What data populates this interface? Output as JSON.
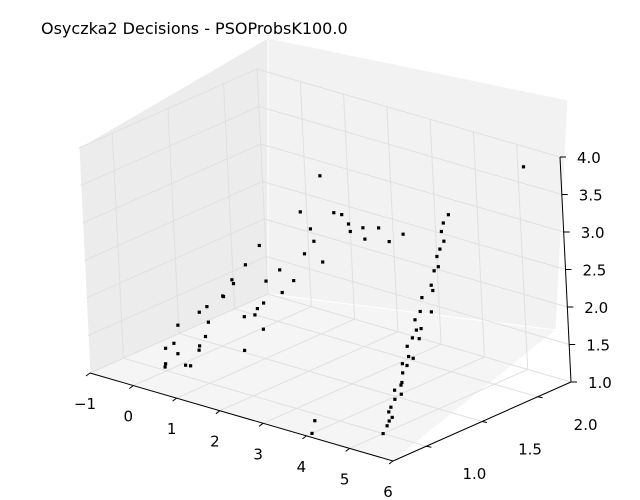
{
  "chart_data": {
    "type": "scatter",
    "title": "Osyczka2 Decisions - PSOProbsK100.0",
    "xlabel": "",
    "ylabel": "",
    "zlabel": "",
    "xlim": [
      -1,
      6
    ],
    "ylim": [
      0.7,
      2.3
    ],
    "zlim": [
      1,
      4
    ],
    "x_ticks": [
      -1,
      0,
      1,
      2,
      3,
      4,
      5,
      6
    ],
    "x_tick_labels": [
      "−1",
      "0",
      "1",
      "2",
      "3",
      "4",
      "5",
      "6"
    ],
    "y_ticks": [
      1.0,
      1.5,
      2.0
    ],
    "y_tick_labels": [
      "1.0",
      "1.5",
      "2.0"
    ],
    "z_ticks": [
      1.0,
      1.5,
      2.0,
      2.5,
      3.0,
      3.5,
      4.0
    ],
    "z_tick_labels": [
      "1.0",
      "1.5",
      "2.0",
      "2.5",
      "3.0",
      "3.5",
      "4.0"
    ],
    "grid": true,
    "colors": {
      "points": "#000000",
      "pane_back": "#ececec",
      "pane_side": "#f2f2f2",
      "pane_floor": "#f5f5f5"
    },
    "series": [
      {
        "points": [
          [
            0.15,
            1.05,
            1.22
          ],
          [
            0.2,
            1.0,
            1.4
          ],
          [
            0.1,
            0.95,
            1.1
          ],
          [
            0.3,
            1.1,
            1.05
          ],
          [
            0.4,
            1.15,
            1.3
          ],
          [
            0.05,
            1.1,
            1.55
          ],
          [
            0.5,
            1.2,
            1.6
          ],
          [
            0.35,
            1.25,
            1.75
          ],
          [
            0.6,
            1.3,
            1.9
          ],
          [
            0.7,
            1.35,
            2.1
          ],
          [
            0.9,
            1.4,
            2.3
          ],
          [
            1.1,
            1.5,
            2.05
          ],
          [
            1.3,
            1.55,
            2.2
          ],
          [
            1.2,
            1.6,
            1.85
          ],
          [
            1.0,
            1.45,
            1.7
          ],
          [
            0.8,
            1.5,
            1.55
          ],
          [
            1.5,
            1.7,
            2.35
          ],
          [
            1.6,
            1.75,
            2.5
          ],
          [
            1.4,
            1.8,
            2.6
          ],
          [
            1.7,
            1.9,
            2.8
          ],
          [
            1.9,
            1.95,
            2.65
          ],
          [
            1.8,
            2.0,
            2.5
          ],
          [
            2.0,
            2.05,
            2.4
          ],
          [
            2.2,
            2.1,
            2.55
          ],
          [
            1.55,
            1.85,
            3.3
          ],
          [
            0.25,
            0.9,
            1.2
          ],
          [
            0.45,
            1.0,
            1.15
          ],
          [
            0.65,
            1.05,
            1.35
          ],
          [
            0.55,
            1.15,
            1.45
          ],
          [
            1.05,
            1.3,
            1.25
          ],
          [
            1.25,
            1.4,
            1.5
          ],
          [
            0.75,
            1.25,
            1.95
          ],
          [
            0.95,
            1.35,
            1.65
          ],
          [
            1.15,
            1.45,
            1.8
          ],
          [
            1.35,
            1.65,
            2.0
          ],
          [
            1.65,
            1.8,
            2.2
          ],
          [
            2.3,
            2.15,
            2.35
          ],
          [
            2.5,
            2.2,
            2.45
          ],
          [
            0.85,
            1.55,
            2.45
          ],
          [
            1.45,
            1.7,
            2.9
          ],
          [
            1.75,
            1.95,
            2.75
          ],
          [
            2.1,
            2.0,
            2.6
          ],
          [
            0.3,
            1.2,
            1.7
          ],
          [
            0.6,
            1.4,
            2.0
          ],
          [
            0.0,
            1.0,
            1.3
          ]
        ]
      },
      {
        "points": [
          [
            5.0,
            1.0,
            1.0
          ],
          [
            5.05,
            1.02,
            1.1
          ],
          [
            5.1,
            1.05,
            1.2
          ],
          [
            5.0,
            1.08,
            1.3
          ],
          [
            5.05,
            1.1,
            1.4
          ],
          [
            5.0,
            1.12,
            1.5
          ],
          [
            5.1,
            1.15,
            1.6
          ],
          [
            5.05,
            1.18,
            1.7
          ],
          [
            5.0,
            1.2,
            1.8
          ],
          [
            5.1,
            1.22,
            1.9
          ],
          [
            5.0,
            1.25,
            2.0
          ],
          [
            5.05,
            1.28,
            2.1
          ],
          [
            5.1,
            1.3,
            2.2
          ],
          [
            5.0,
            1.33,
            2.3
          ],
          [
            5.05,
            1.36,
            2.4
          ],
          [
            5.0,
            1.4,
            2.55
          ],
          [
            5.1,
            1.45,
            2.7
          ],
          [
            5.05,
            1.5,
            2.85
          ],
          [
            5.0,
            1.55,
            3.0
          ],
          [
            5.1,
            1.58,
            3.2
          ],
          [
            5.0,
            1.62,
            3.4
          ],
          [
            5.05,
            1.04,
            1.15
          ],
          [
            5.1,
            1.14,
            1.45
          ],
          [
            5.0,
            1.24,
            1.75
          ],
          [
            5.05,
            1.34,
            2.05
          ],
          [
            5.1,
            1.44,
            2.35
          ],
          [
            5.0,
            1.06,
            1.25
          ],
          [
            5.05,
            1.16,
            1.55
          ],
          [
            5.1,
            1.26,
            1.85
          ],
          [
            5.0,
            1.38,
            2.15
          ],
          [
            5.05,
            1.48,
            2.6
          ],
          [
            5.1,
            1.52,
            2.9
          ],
          [
            5.05,
            1.56,
            3.1
          ],
          [
            5.0,
            1.6,
            3.3
          ],
          [
            5.05,
            1.65,
            3.5
          ],
          [
            5.8,
            2.05,
            4.0
          ],
          [
            4.0,
            0.75,
            1.0
          ],
          [
            4.0,
            0.78,
            1.15
          ]
        ]
      }
    ]
  }
}
